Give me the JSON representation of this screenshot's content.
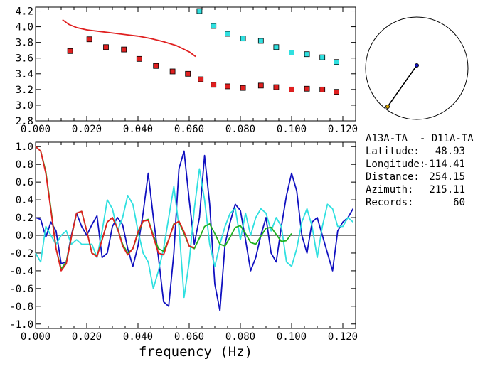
{
  "chart_data": [
    {
      "type": "scatter",
      "title": "",
      "xlabel": "",
      "ylabel": "",
      "xlim": [
        0.0,
        0.125
      ],
      "ylim": [
        2.8,
        4.25
      ],
      "xticks": [
        "0.000",
        "0.020",
        "0.040",
        "0.060",
        "0.080",
        "0.100",
        "0.120"
      ],
      "yticks": [
        "2.8",
        "3.0",
        "3.2",
        "3.4",
        "3.6",
        "3.8",
        "4.0",
        "4.2"
      ],
      "colors": {
        "red_squares": "#e02020",
        "cyan_squares": "#30e0e0",
        "red_line": "#e02020"
      },
      "series": [
        {
          "marker": "square",
          "color": "#e02020",
          "x": [
            0.0135,
            0.021,
            0.0275,
            0.0345,
            0.0405,
            0.047,
            0.0535,
            0.0595,
            0.0645,
            0.0695,
            0.075,
            0.081,
            0.088,
            0.094,
            0.1,
            0.106,
            0.112,
            0.1175
          ],
          "y": [
            3.69,
            3.84,
            3.74,
            3.71,
            3.59,
            3.5,
            3.43,
            3.4,
            3.33,
            3.26,
            3.24,
            3.22,
            3.25,
            3.23,
            3.2,
            3.21,
            3.2,
            3.17
          ]
        },
        {
          "marker": "square",
          "color": "#30e0e0",
          "x": [
            0.064,
            0.0695,
            0.075,
            0.081,
            0.088,
            0.094,
            0.1,
            0.106,
            0.112,
            0.1175
          ],
          "y": [
            4.2,
            4.01,
            3.91,
            3.85,
            3.82,
            3.74,
            3.67,
            3.65,
            3.61,
            3.55
          ]
        },
        {
          "marker": "line",
          "color": "#e02020",
          "x": [
            0.0105,
            0.013,
            0.016,
            0.02,
            0.025,
            0.03,
            0.035,
            0.04,
            0.045,
            0.05,
            0.055,
            0.06,
            0.0625
          ],
          "y": [
            4.09,
            4.03,
            3.99,
            3.96,
            3.94,
            3.92,
            3.9,
            3.88,
            3.85,
            3.81,
            3.76,
            3.68,
            3.62
          ]
        }
      ]
    },
    {
      "type": "line",
      "title": "",
      "xlabel": "frequency (Hz)",
      "ylabel": "",
      "xlim": [
        0.0,
        0.125
      ],
      "ylim": [
        -1.05,
        1.05
      ],
      "xticks": [
        "0.000",
        "0.020",
        "0.040",
        "0.060",
        "0.080",
        "0.100",
        "0.120"
      ],
      "yticks": [
        "1.0",
        "0.8",
        "0.6",
        "0.4",
        "0.2",
        "0.0",
        "-0.2",
        "-0.4",
        "-0.6",
        "-0.8",
        "-1.0"
      ],
      "series": [
        {
          "color": "#1010c0",
          "x": [
            0.0,
            0.002,
            0.004,
            0.006,
            0.008,
            0.01,
            0.012,
            0.014,
            0.016,
            0.018,
            0.02,
            0.022,
            0.024,
            0.026,
            0.028,
            0.03,
            0.032,
            0.034,
            0.036,
            0.038,
            0.04,
            0.042,
            0.044,
            0.046,
            0.048,
            0.05,
            0.052,
            0.054,
            0.056,
            0.058,
            0.06,
            0.062,
            0.064,
            0.066,
            0.068,
            0.07,
            0.072,
            0.074,
            0.076,
            0.078,
            0.08,
            0.082,
            0.084,
            0.086,
            0.088,
            0.09,
            0.092,
            0.094,
            0.096,
            0.098,
            0.1,
            0.102,
            0.104,
            0.106,
            0.108,
            0.11,
            0.112,
            0.114,
            0.116,
            0.118,
            0.12,
            0.122,
            0.124
          ],
          "y": [
            0.2,
            0.18,
            -0.02,
            0.15,
            0.05,
            -0.32,
            -0.3,
            0.0,
            0.25,
            0.1,
            0.0,
            0.12,
            0.22,
            -0.25,
            -0.2,
            0.1,
            0.2,
            0.12,
            -0.15,
            -0.35,
            -0.12,
            0.25,
            0.7,
            0.2,
            -0.25,
            -0.75,
            -0.8,
            -0.2,
            0.75,
            0.95,
            0.4,
            -0.1,
            0.2,
            0.9,
            0.35,
            -0.55,
            -0.85,
            -0.1,
            0.15,
            0.35,
            0.28,
            -0.05,
            -0.4,
            -0.25,
            0.0,
            0.2,
            -0.2,
            -0.3,
            0.1,
            0.45,
            0.7,
            0.5,
            0.0,
            -0.2,
            0.15,
            0.2,
            0.0,
            -0.2,
            -0.4,
            0.05,
            0.15,
            0.2,
            0.3
          ]
        },
        {
          "color": "#30e0e0",
          "x": [
            0.0,
            0.002,
            0.004,
            0.006,
            0.008,
            0.01,
            0.012,
            0.014,
            0.016,
            0.018,
            0.02,
            0.022,
            0.024,
            0.026,
            0.028,
            0.03,
            0.032,
            0.034,
            0.036,
            0.038,
            0.04,
            0.042,
            0.044,
            0.046,
            0.048,
            0.05,
            0.052,
            0.054,
            0.056,
            0.058,
            0.06,
            0.062,
            0.064,
            0.066,
            0.068,
            0.07,
            0.072,
            0.074,
            0.076,
            0.078,
            0.08,
            0.082,
            0.084,
            0.086,
            0.088,
            0.09,
            0.092,
            0.094,
            0.096,
            0.098,
            0.1,
            0.102,
            0.104,
            0.106,
            0.108,
            0.11,
            0.112,
            0.114,
            0.116,
            0.118,
            0.12,
            0.122,
            0.124
          ],
          "y": [
            -0.2,
            -0.3,
            0.1,
            0.0,
            -0.1,
            0.0,
            0.05,
            -0.1,
            -0.05,
            -0.1,
            -0.1,
            -0.1,
            -0.25,
            0.05,
            0.4,
            0.3,
            0.05,
            0.2,
            0.45,
            0.35,
            0.05,
            -0.2,
            -0.3,
            -0.6,
            -0.4,
            -0.15,
            0.2,
            0.55,
            0.1,
            -0.7,
            -0.3,
            0.3,
            0.75,
            0.4,
            -0.1,
            -0.35,
            -0.1,
            0.1,
            0.25,
            0.3,
            -0.05,
            0.25,
            0.0,
            0.2,
            0.3,
            0.25,
            0.05,
            0.2,
            0.1,
            -0.3,
            -0.35,
            -0.15,
            0.15,
            0.3,
            0.1,
            -0.25,
            0.1,
            0.35,
            0.3,
            0.1,
            0.1,
            0.2,
            0.15
          ]
        },
        {
          "color": "#20b020",
          "x": [
            0.0,
            0.002,
            0.004,
            0.006,
            0.008,
            0.01,
            0.012,
            0.014,
            0.016,
            0.018,
            0.02,
            0.022,
            0.024,
            0.026,
            0.028,
            0.03,
            0.032,
            0.034,
            0.036,
            0.038,
            0.04,
            0.042,
            0.044,
            0.046,
            0.048,
            0.05,
            0.052,
            0.054,
            0.056,
            0.058,
            0.06,
            0.062,
            0.064,
            0.066,
            0.068,
            0.07,
            0.072,
            0.074,
            0.076,
            0.078,
            0.08,
            0.082,
            0.084,
            0.086,
            0.088,
            0.09,
            0.092,
            0.094,
            0.096,
            0.098,
            0.1
          ],
          "y": [
            1.0,
            0.95,
            0.72,
            0.3,
            -0.15,
            -0.38,
            -0.3,
            -0.02,
            0.25,
            0.27,
            0.05,
            -0.2,
            -0.23,
            -0.05,
            0.15,
            0.2,
            0.08,
            -0.1,
            -0.2,
            -0.15,
            0.02,
            0.16,
            0.18,
            0.0,
            -0.15,
            -0.18,
            -0.05,
            0.13,
            0.15,
            0.02,
            -0.12,
            -0.15,
            -0.03,
            0.1,
            0.13,
            0.02,
            -0.1,
            -0.12,
            -0.02,
            0.09,
            0.11,
            0.02,
            -0.08,
            -0.1,
            -0.01,
            0.08,
            0.09,
            0.01,
            -0.07,
            -0.06,
            0.02
          ]
        },
        {
          "color": "#e02020",
          "x": [
            0.0,
            0.002,
            0.004,
            0.006,
            0.008,
            0.01,
            0.012,
            0.014,
            0.016,
            0.018,
            0.02,
            0.022,
            0.024,
            0.026,
            0.028,
            0.03,
            0.032,
            0.034,
            0.036,
            0.038,
            0.04,
            0.042,
            0.044,
            0.046,
            0.048,
            0.05,
            0.052,
            0.054,
            0.056,
            0.058,
            0.06,
            0.062
          ],
          "y": [
            1.0,
            0.95,
            0.7,
            0.28,
            -0.15,
            -0.4,
            -0.32,
            -0.02,
            0.25,
            0.27,
            0.05,
            -0.2,
            -0.24,
            -0.05,
            0.15,
            0.2,
            0.08,
            -0.12,
            -0.22,
            -0.15,
            0.04,
            0.16,
            0.17,
            -0.02,
            -0.2,
            -0.22,
            -0.05,
            0.12,
            0.16,
            0.04,
            -0.12,
            -0.14
          ]
        }
      ]
    }
  ],
  "map": {
    "station_color": "#1010c0",
    "event_color": "#d0a000"
  },
  "info": {
    "pair": "A13A-TA  - D11A-TA",
    "rows": [
      {
        "label": "Latitude:",
        "value": "48.93"
      },
      {
        "label": "Longitude:",
        "value": "-114.41"
      },
      {
        "label": "Distance:",
        "value": "254.15"
      },
      {
        "label": "Azimuth:",
        "value": "215.11"
      },
      {
        "label": "Records:",
        "value": "60"
      }
    ]
  }
}
